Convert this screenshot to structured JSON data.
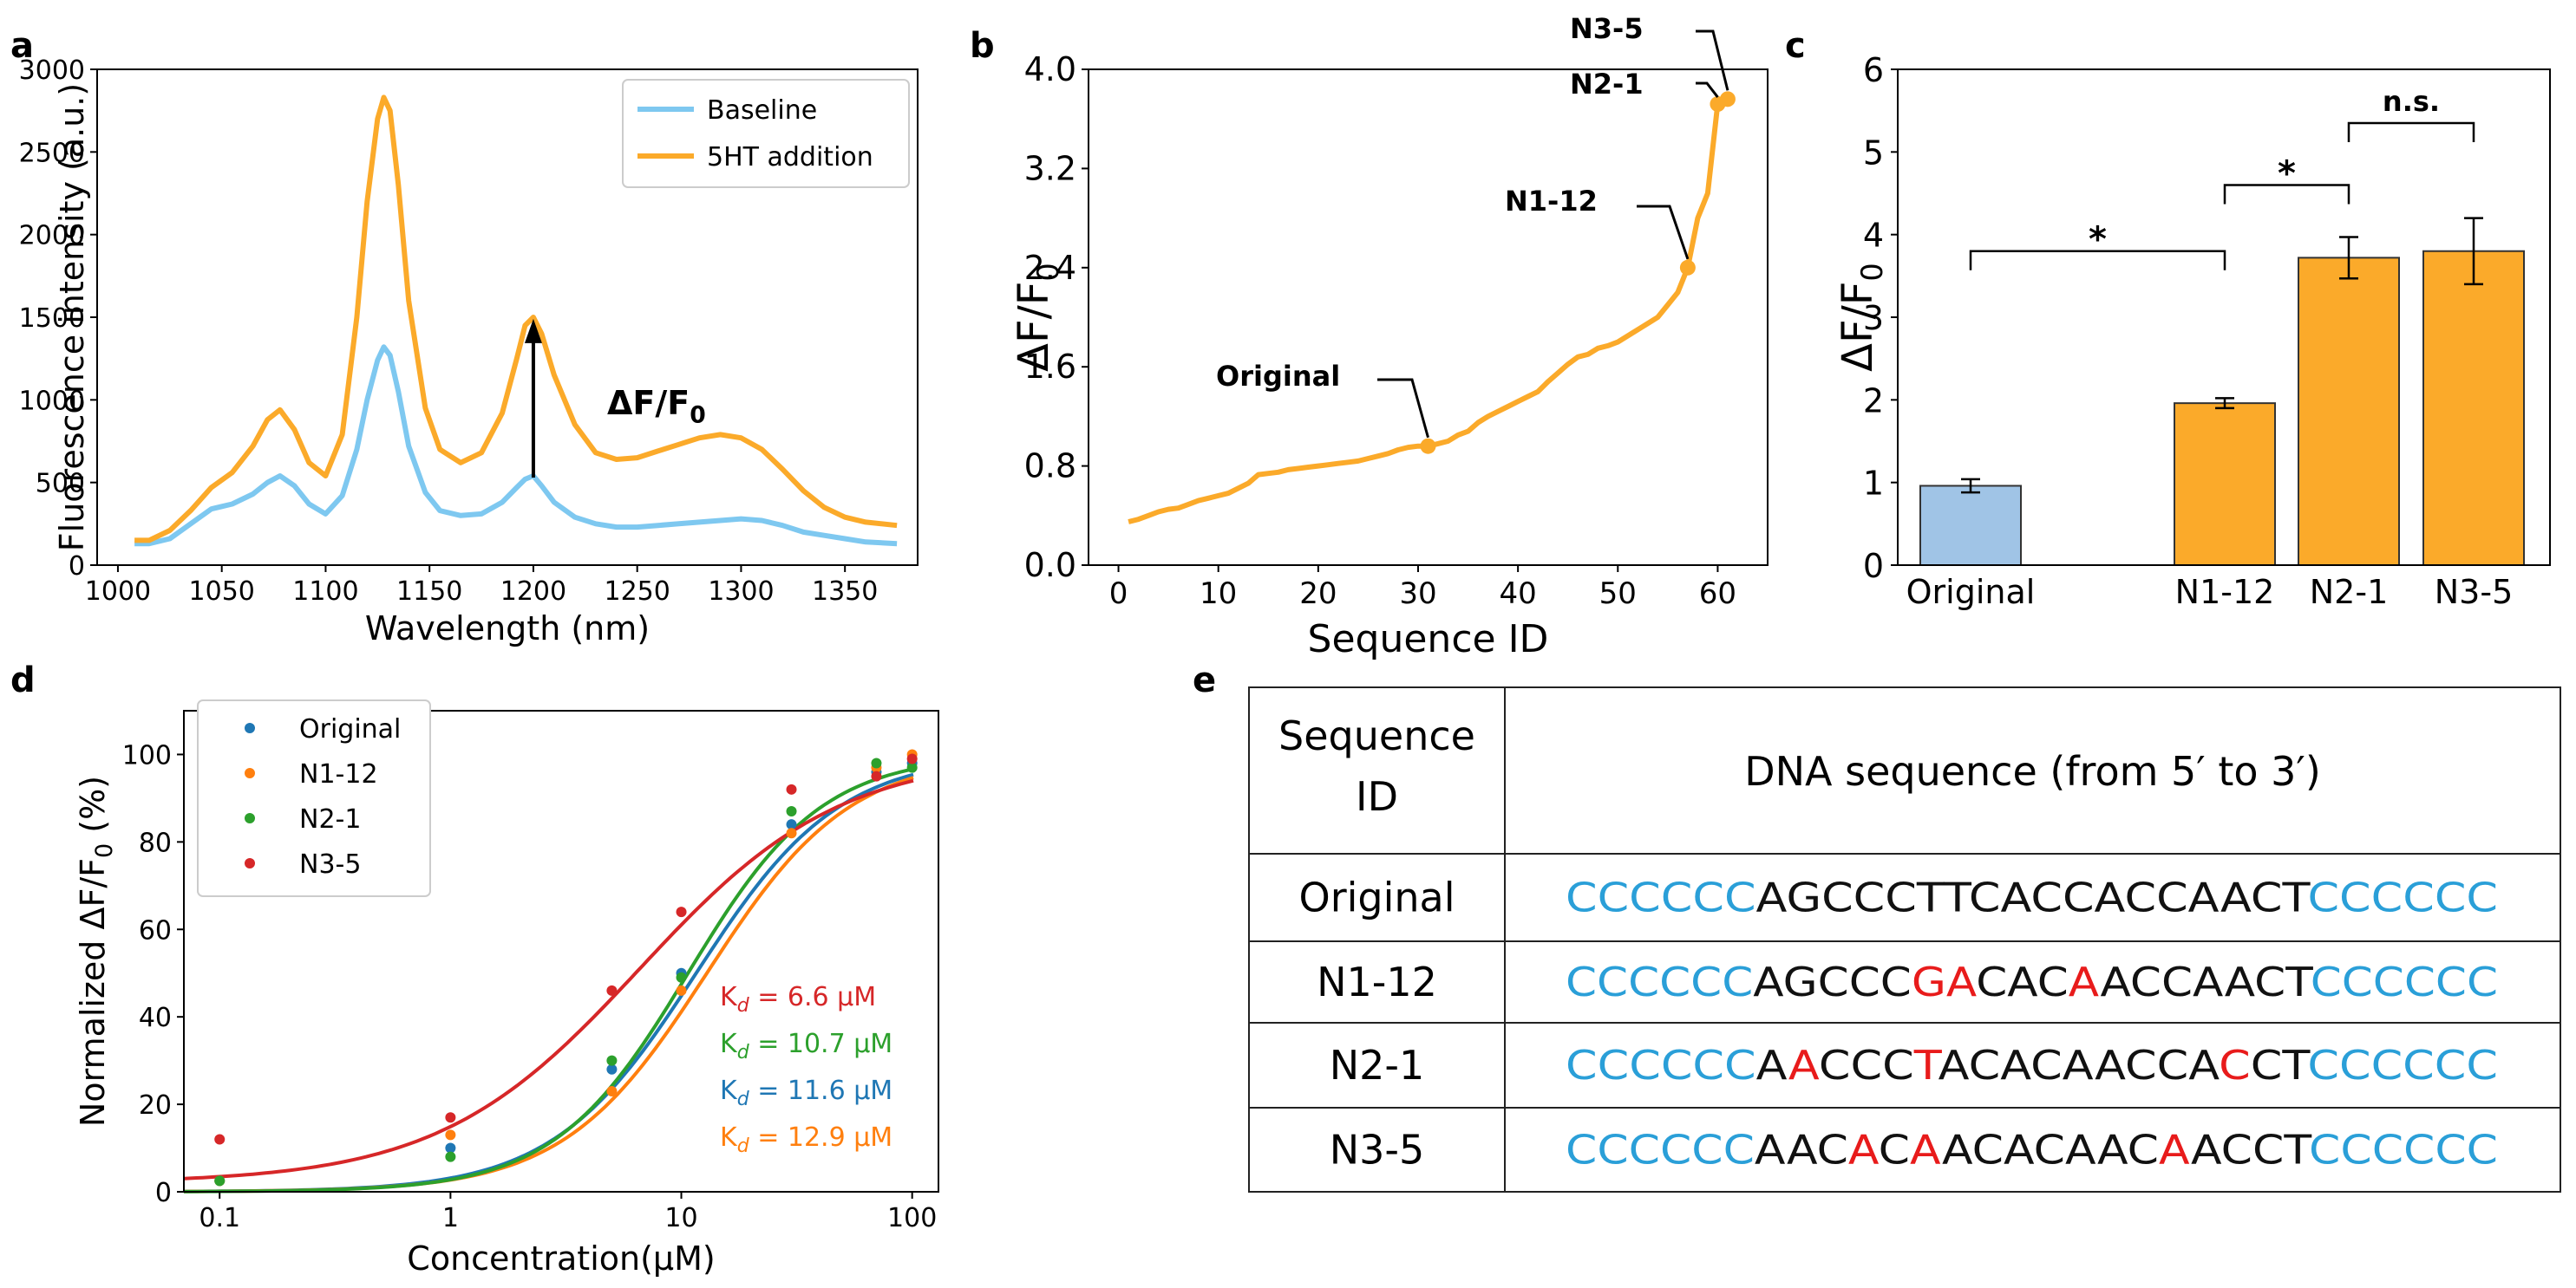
{
  "panels": {
    "a": "a",
    "b": "b",
    "c": "c",
    "d": "d",
    "e": "e"
  },
  "colors": {
    "baseline": "#7ec8f0",
    "addition": "#fbaa2a",
    "bar_blue": "#a0c4e6",
    "bar_orange": "#fbaa2a",
    "orig": "#1f77b4",
    "n112": "#ff7f0e",
    "n21": "#2ca02c",
    "n35": "#d62728",
    "dna_blue": "#2a9fd8",
    "dna_red": "#e81b1b"
  },
  "chart_data": [
    {
      "panel": "a",
      "type": "line",
      "xlabel": "Wavelength (nm)",
      "ylabel": "Fluorescence intensity (a.u.)",
      "xlim": [
        990,
        1385
      ],
      "ylim": [
        0,
        3000
      ],
      "xticks": [
        1000,
        1050,
        1100,
        1150,
        1200,
        1250,
        1300,
        1350
      ],
      "yticks": [
        0,
        500,
        1000,
        1500,
        2000,
        2500,
        3000
      ],
      "annotation": "ΔF/F0",
      "arrow": {
        "x": 1200,
        "from": 530,
        "to": 1490
      },
      "legend": "top-right",
      "series": [
        {
          "name": "Baseline",
          "x": [
            1008,
            1015,
            1025,
            1035,
            1045,
            1055,
            1065,
            1072,
            1078,
            1085,
            1092,
            1100,
            1108,
            1115,
            1120,
            1125,
            1128,
            1131,
            1135,
            1140,
            1148,
            1155,
            1165,
            1175,
            1185,
            1192,
            1196,
            1200,
            1204,
            1210,
            1220,
            1230,
            1240,
            1250,
            1260,
            1270,
            1280,
            1290,
            1300,
            1310,
            1320,
            1330,
            1340,
            1350,
            1360,
            1375
          ],
          "values": [
            130,
            130,
            160,
            250,
            340,
            370,
            430,
            500,
            540,
            480,
            370,
            310,
            420,
            700,
            1000,
            1240,
            1320,
            1270,
            1050,
            720,
            440,
            330,
            300,
            310,
            380,
            470,
            520,
            540,
            480,
            380,
            290,
            250,
            230,
            230,
            240,
            250,
            260,
            270,
            280,
            270,
            240,
            200,
            180,
            160,
            140,
            130
          ]
        },
        {
          "name": "5HT addition",
          "x": [
            1008,
            1015,
            1025,
            1035,
            1045,
            1055,
            1065,
            1072,
            1078,
            1085,
            1092,
            1100,
            1108,
            1115,
            1120,
            1125,
            1128,
            1131,
            1135,
            1140,
            1148,
            1155,
            1165,
            1175,
            1185,
            1192,
            1196,
            1200,
            1204,
            1210,
            1220,
            1230,
            1240,
            1250,
            1260,
            1270,
            1280,
            1290,
            1300,
            1310,
            1320,
            1330,
            1340,
            1350,
            1360,
            1375
          ],
          "values": [
            150,
            150,
            210,
            330,
            470,
            560,
            720,
            880,
            940,
            820,
            620,
            540,
            790,
            1500,
            2200,
            2700,
            2830,
            2750,
            2300,
            1600,
            950,
            700,
            620,
            680,
            920,
            1250,
            1450,
            1500,
            1400,
            1150,
            850,
            680,
            640,
            650,
            690,
            730,
            770,
            790,
            770,
            700,
            580,
            450,
            350,
            290,
            260,
            240
          ]
        }
      ]
    },
    {
      "panel": "b",
      "type": "line",
      "xlabel": "Sequence ID",
      "ylabel": "ΔF/F0",
      "xlim": [
        -3,
        65
      ],
      "ylim": [
        0,
        4.0
      ],
      "xticks": [
        0,
        10,
        20,
        30,
        40,
        50,
        60
      ],
      "yticks": [
        0.0,
        0.8,
        1.6,
        2.4,
        3.2,
        4.0
      ],
      "ytick_labels": [
        "0.0",
        "0.8",
        "1.6",
        "2.4",
        "3.2",
        "4.0"
      ],
      "x": [
        1,
        2,
        3,
        4,
        5,
        6,
        7,
        8,
        9,
        10,
        11,
        12,
        13,
        14,
        15,
        16,
        17,
        18,
        19,
        20,
        21,
        22,
        23,
        24,
        25,
        26,
        27,
        28,
        29,
        30,
        31,
        32,
        33,
        34,
        35,
        36,
        37,
        38,
        39,
        40,
        41,
        42,
        43,
        44,
        45,
        46,
        47,
        48,
        49,
        50,
        51,
        52,
        53,
        54,
        55,
        56,
        57,
        58,
        59,
        60,
        61
      ],
      "values": [
        0.35,
        0.37,
        0.4,
        0.43,
        0.45,
        0.46,
        0.49,
        0.52,
        0.54,
        0.56,
        0.58,
        0.62,
        0.66,
        0.73,
        0.74,
        0.75,
        0.77,
        0.78,
        0.79,
        0.8,
        0.81,
        0.82,
        0.83,
        0.84,
        0.86,
        0.88,
        0.9,
        0.93,
        0.95,
        0.96,
        0.96,
        0.98,
        1.0,
        1.05,
        1.08,
        1.15,
        1.2,
        1.24,
        1.28,
        1.32,
        1.36,
        1.4,
        1.48,
        1.55,
        1.62,
        1.68,
        1.7,
        1.75,
        1.77,
        1.8,
        1.85,
        1.9,
        1.95,
        2.0,
        2.1,
        2.2,
        2.4,
        2.8,
        3.0,
        3.72,
        3.76
      ],
      "highlights": [
        {
          "label": "Original",
          "x": 31,
          "y": 0.96
        },
        {
          "label": "N1-12",
          "x": 57,
          "y": 2.4
        },
        {
          "label": "N2-1",
          "x": 60,
          "y": 3.72
        },
        {
          "label": "N3-5",
          "x": 61,
          "y": 3.76
        }
      ]
    },
    {
      "panel": "c",
      "type": "bar",
      "ylabel": "ΔF/F0",
      "ylim": [
        0,
        6
      ],
      "yticks": [
        0,
        1,
        2,
        3,
        4,
        5,
        6
      ],
      "categories": [
        "Original",
        "N1-12",
        "N2-1",
        "N3-5"
      ],
      "values": [
        0.96,
        1.96,
        3.72,
        3.8
      ],
      "errors": [
        0.08,
        0.06,
        0.25,
        0.4
      ],
      "significance": [
        {
          "from": "Original",
          "to": "N1-12",
          "label": "*"
        },
        {
          "from": "N1-12",
          "to": "N2-1",
          "label": "*"
        },
        {
          "from": "N2-1",
          "to": "N3-5",
          "label": "n.s."
        }
      ]
    },
    {
      "panel": "d",
      "type": "scatter",
      "xlabel": "Concentration(μM)",
      "ylabel": "Normalized ΔF/F0 (%)",
      "xscale": "log",
      "xlim": [
        0.07,
        130
      ],
      "ylim": [
        0,
        110
      ],
      "xticks": [
        0.1,
        1,
        10,
        100
      ],
      "xtick_labels": [
        "0.1",
        "1",
        "10",
        "100"
      ],
      "yticks": [
        0,
        20,
        40,
        60,
        80,
        100
      ],
      "x": [
        0.1,
        1,
        5,
        10,
        30,
        70,
        100
      ],
      "legend": "top-left",
      "series": [
        {
          "name": "Original",
          "values": [
            2.5,
            10,
            28,
            50,
            84,
            96,
            98
          ],
          "kd": "11.6",
          "n": 1.4
        },
        {
          "name": "N1-12",
          "values": [
            2.5,
            13,
            23,
            46,
            82,
            97,
            100
          ],
          "kd": "12.9",
          "n": 1.4
        },
        {
          "name": "N2-1",
          "values": [
            2.5,
            8,
            30,
            49,
            87,
            98,
            97
          ],
          "kd": "10.7",
          "n": 1.5
        },
        {
          "name": "N3-5",
          "values": [
            12,
            17,
            46,
            64,
            92,
            95,
            99
          ],
          "kd": "6.6",
          "n": 1.0
        }
      ],
      "kd_prefix": "K",
      "kd_sub": "d",
      "kd_unit": "μM"
    }
  ],
  "table": {
    "header_seq_line1": "Sequence",
    "header_seq_line2": "ID",
    "header_dna": "DNA sequence (from 5′ to 3′)",
    "rows": [
      {
        "id": "Original",
        "segments": [
          {
            "t": "CCCCCC",
            "c": "b"
          },
          {
            "t": "AGCCCTTCACCACCAACT",
            "c": "k"
          },
          {
            "t": "CCCCCC",
            "c": "b"
          }
        ]
      },
      {
        "id": "N1-12",
        "segments": [
          {
            "t": "CCCCCC",
            "c": "b"
          },
          {
            "t": "AGCCC",
            "c": "k"
          },
          {
            "t": "GA",
            "c": "r"
          },
          {
            "t": "CAC",
            "c": "k"
          },
          {
            "t": "A",
            "c": "r"
          },
          {
            "t": "ACCAACT",
            "c": "k"
          },
          {
            "t": "CCCCCC",
            "c": "b"
          }
        ]
      },
      {
        "id": "N2-1",
        "segments": [
          {
            "t": "CCCCCC",
            "c": "b"
          },
          {
            "t": "A",
            "c": "k"
          },
          {
            "t": "A",
            "c": "r"
          },
          {
            "t": "CCC",
            "c": "k"
          },
          {
            "t": "T",
            "c": "r"
          },
          {
            "t": "ACACAACCA",
            "c": "k"
          },
          {
            "t": "C",
            "c": "r"
          },
          {
            "t": "CT",
            "c": "k"
          },
          {
            "t": "CCCCCC",
            "c": "b"
          }
        ]
      },
      {
        "id": "N3-5",
        "segments": [
          {
            "t": "CCCCCC",
            "c": "b"
          },
          {
            "t": "AAC",
            "c": "k"
          },
          {
            "t": "A",
            "c": "r"
          },
          {
            "t": "C",
            "c": "k"
          },
          {
            "t": "A",
            "c": "r"
          },
          {
            "t": "ACACAAC",
            "c": "k"
          },
          {
            "t": "A",
            "c": "r"
          },
          {
            "t": "ACCT",
            "c": "k"
          },
          {
            "t": "CCCCCC",
            "c": "b"
          }
        ]
      }
    ]
  }
}
